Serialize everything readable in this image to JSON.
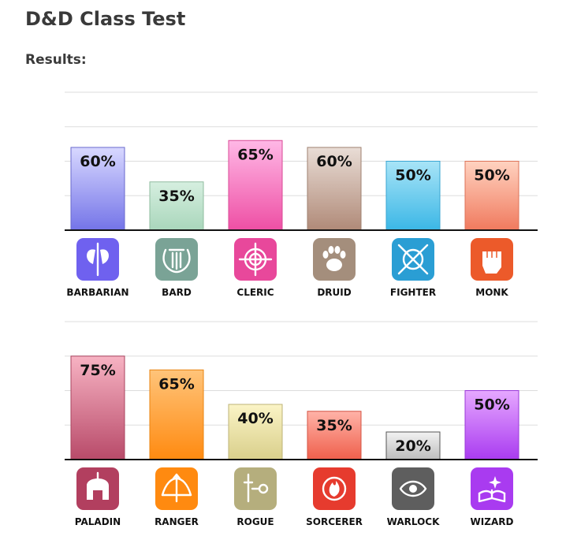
{
  "page": {
    "title": "D&D Class Test",
    "results_label": "Results:"
  },
  "chart_data": [
    {
      "type": "bar",
      "categories": [
        "BARBARIAN",
        "BARD",
        "CLERIC",
        "DRUID",
        "FIGHTER",
        "MONK"
      ],
      "values": [
        60,
        35,
        65,
        60,
        50,
        50
      ],
      "value_labels": [
        "60%",
        "35%",
        "65%",
        "60%",
        "50%",
        "50%"
      ],
      "unit": "%",
      "ylim": [
        0,
        100
      ],
      "grid": true,
      "colors": [
        {
          "top": "#d8d8ff",
          "bottom": "#7474e8",
          "stroke": "#6a6acc"
        },
        {
          "top": "#d6efe0",
          "bottom": "#a9d6bb",
          "stroke": "#8fbc9f"
        },
        {
          "top": "#ffb8e6",
          "bottom": "#ee4fa4",
          "stroke": "#d94a96"
        },
        {
          "top": "#e9ddd6",
          "bottom": "#b08a78",
          "stroke": "#9f8170"
        },
        {
          "top": "#a8e4f7",
          "bottom": "#3bb7e6",
          "stroke": "#3aa5d2"
        },
        {
          "top": "#ffd2c0",
          "bottom": "#f07a5e",
          "stroke": "#dd7358"
        }
      ],
      "icons": [
        {
          "name": "axe-icon",
          "bg": "#6f61ef"
        },
        {
          "name": "lyre-icon",
          "bg": "#7aa396"
        },
        {
          "name": "holy-symbol-icon",
          "bg": "#e8489b"
        },
        {
          "name": "paw-icon",
          "bg": "#a48e7c"
        },
        {
          "name": "crossed-swords-shield-icon",
          "bg": "#2a9ed4"
        },
        {
          "name": "fist-icon",
          "bg": "#ec5a2a"
        }
      ]
    },
    {
      "type": "bar",
      "categories": [
        "PALADIN",
        "RANGER",
        "ROGUE",
        "SORCERER",
        "WARLOCK",
        "WIZARD"
      ],
      "values": [
        75,
        65,
        40,
        35,
        20,
        50
      ],
      "value_labels": [
        "75%",
        "65%",
        "40%",
        "35%",
        "20%",
        "50%"
      ],
      "unit": "%",
      "ylim": [
        0,
        100
      ],
      "grid": true,
      "colors": [
        {
          "top": "#f7b3c3",
          "bottom": "#b84a69",
          "stroke": "#a9445f"
        },
        {
          "top": "#ffc47a",
          "bottom": "#ff8a10",
          "stroke": "#e88411"
        },
        {
          "top": "#fbf4c6",
          "bottom": "#d9cf8b",
          "stroke": "#bdb377"
        },
        {
          "top": "#ffb3a8",
          "bottom": "#ef5f4b",
          "stroke": "#d45444"
        },
        {
          "top": "#f2f2f2",
          "bottom": "#bdbdbd",
          "stroke": "#555555"
        },
        {
          "top": "#e6a8ff",
          "bottom": "#a93bf0",
          "stroke": "#9a39d8"
        }
      ],
      "icons": [
        {
          "name": "helmet-icon",
          "bg": "#b23f5f"
        },
        {
          "name": "bow-icon",
          "bg": "#ff8a10"
        },
        {
          "name": "dagger-key-icon",
          "bg": "#b5ae7d"
        },
        {
          "name": "flame-icon",
          "bg": "#e63b2e"
        },
        {
          "name": "eye-icon",
          "bg": "#5e5e5e"
        },
        {
          "name": "spellbook-icon",
          "bg": "#a93bf0"
        }
      ]
    }
  ]
}
